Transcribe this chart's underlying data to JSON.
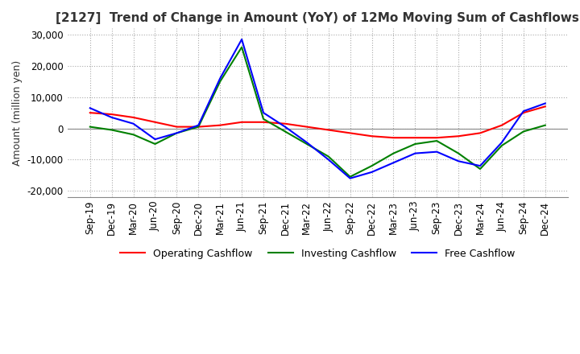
{
  "title": "[2127]  Trend of Change in Amount (YoY) of 12Mo Moving Sum of Cashflows",
  "ylabel": "Amount (million yen)",
  "xlabels": [
    "Sep-19",
    "Dec-19",
    "Mar-20",
    "Jun-20",
    "Sep-20",
    "Dec-20",
    "Mar-21",
    "Jun-21",
    "Sep-21",
    "Dec-21",
    "Mar-22",
    "Jun-22",
    "Sep-22",
    "Dec-22",
    "Mar-23",
    "Jun-23",
    "Sep-23",
    "Dec-23",
    "Mar-24",
    "Jun-24",
    "Sep-24",
    "Dec-24"
  ],
  "operating_cashflow": [
    5000,
    4500,
    3500,
    2000,
    500,
    500,
    1000,
    2000,
    2000,
    1500,
    500,
    -500,
    -1500,
    -2500,
    -3000,
    -3000,
    -3000,
    -2500,
    -1500,
    1000,
    5000,
    7000
  ],
  "investing_cashflow": [
    500,
    -500,
    -2000,
    -5000,
    -1500,
    500,
    15000,
    26000,
    3000,
    -1000,
    -5000,
    -9000,
    -15500,
    -12000,
    -8000,
    -5000,
    -4000,
    -8000,
    -13000,
    -5500,
    -1000,
    1000
  ],
  "free_cashflow": [
    6500,
    3500,
    1500,
    -3500,
    -1500,
    1000,
    16000,
    28500,
    5000,
    500,
    -4500,
    -10000,
    -16000,
    -14000,
    -11000,
    -8000,
    -7500,
    -10500,
    -12000,
    -4500,
    5500,
    8000
  ],
  "ylim": [
    -22000,
    32000
  ],
  "yticks": [
    -20000,
    -10000,
    0,
    10000,
    20000,
    30000
  ],
  "operating_color": "#ff0000",
  "investing_color": "#008000",
  "free_color": "#0000ff",
  "background_color": "#ffffff",
  "grid_color": "#aaaaaa",
  "zero_line_color": "#888888",
  "title_color": "#333333",
  "legend_labels": [
    "Operating Cashflow",
    "Investing Cashflow",
    "Free Cashflow"
  ],
  "line_width": 1.5,
  "title_fontsize": 11,
  "axis_fontsize": 8.5,
  "ylabel_fontsize": 9,
  "legend_fontsize": 9
}
